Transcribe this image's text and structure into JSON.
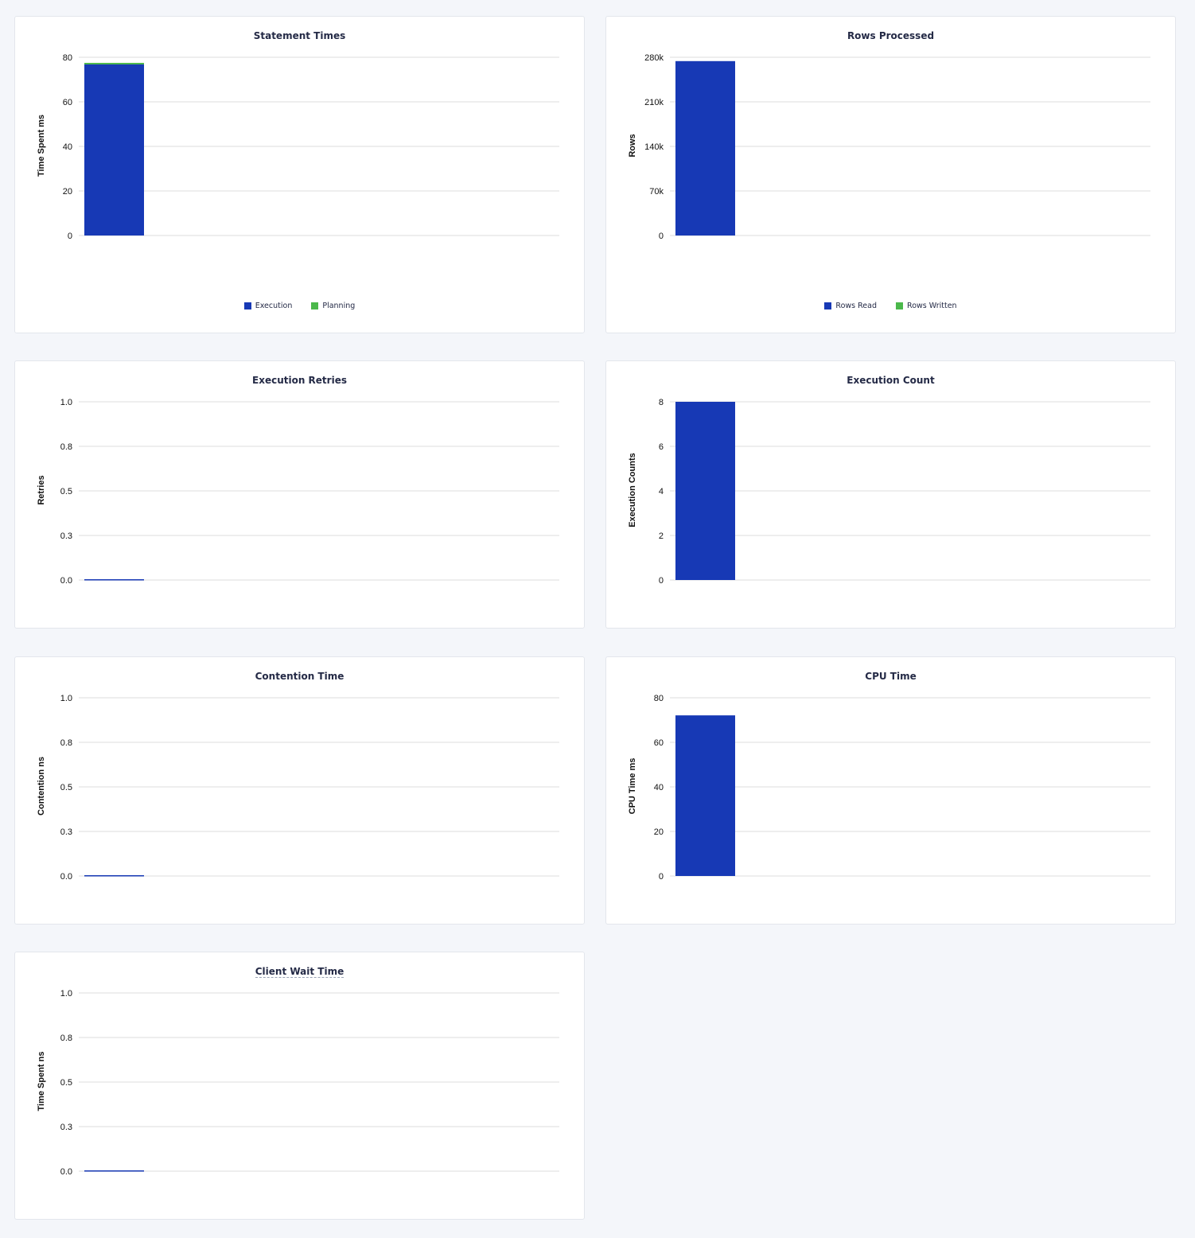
{
  "colors": {
    "primary": "#1739b5",
    "secondary": "#4bb84b",
    "grid": "#e8e8e8"
  },
  "chart_data": [
    {
      "id": "c0",
      "type": "bar",
      "stacked": true,
      "title": "Statement Times",
      "ylabel": "Time Spent ms",
      "ylim": [
        0,
        80
      ],
      "yticks": [
        "0",
        "20",
        "40",
        "60",
        "80"
      ],
      "tickvals": [
        0,
        20,
        40,
        60,
        80
      ],
      "series": [
        {
          "name": "Execution",
          "values": [
            76.8
          ],
          "color": "#1739b5"
        },
        {
          "name": "Planning",
          "values": [
            0.7
          ],
          "color": "#4bb84b"
        }
      ],
      "legend": "bottom"
    },
    {
      "id": "c1",
      "type": "bar",
      "stacked": true,
      "title": "Rows Processed",
      "ylabel": "Rows",
      "ylim": [
        0,
        280000
      ],
      "yticks": [
        "0",
        "70k",
        "140k",
        "210k",
        "280k"
      ],
      "tickvals": [
        0,
        70000,
        140000,
        210000,
        280000
      ],
      "series": [
        {
          "name": "Rows Read",
          "values": [
            274000
          ],
          "color": "#1739b5"
        },
        {
          "name": "Rows Written",
          "values": [
            0
          ],
          "color": "#4bb84b"
        }
      ],
      "legend": "bottom"
    },
    {
      "id": "c2",
      "type": "bar",
      "title": "Execution Retries",
      "ylabel": "Retries",
      "ylim": [
        0,
        1
      ],
      "yticks": [
        "0.0",
        "0.3",
        "0.5",
        "0.8",
        "1.0"
      ],
      "tickvals": [
        0,
        0.25,
        0.5,
        0.75,
        1
      ],
      "series": [
        {
          "values": [
            0
          ],
          "color": "#1739b5"
        }
      ]
    },
    {
      "id": "c3",
      "type": "bar",
      "title": "Execution Count",
      "ylabel": "Execution Counts",
      "ylim": [
        0,
        8
      ],
      "yticks": [
        "0",
        "2",
        "4",
        "6",
        "8"
      ],
      "tickvals": [
        0,
        2,
        4,
        6,
        8
      ],
      "series": [
        {
          "values": [
            8
          ],
          "color": "#1739b5"
        }
      ]
    },
    {
      "id": "c4",
      "type": "bar",
      "title": "Contention Time",
      "ylabel": "Contention ns",
      "ylim": [
        0,
        1
      ],
      "yticks": [
        "0.0",
        "0.3",
        "0.5",
        "0.8",
        "1.0"
      ],
      "tickvals": [
        0,
        0.25,
        0.5,
        0.75,
        1
      ],
      "series": [
        {
          "values": [
            0
          ],
          "color": "#1739b5"
        }
      ]
    },
    {
      "id": "c5",
      "type": "bar",
      "title": "CPU Time",
      "ylabel": "CPU Time ms",
      "ylim": [
        0,
        80
      ],
      "yticks": [
        "0",
        "20",
        "40",
        "60",
        "80"
      ],
      "tickvals": [
        0,
        20,
        40,
        60,
        80
      ],
      "series": [
        {
          "values": [
            72.1
          ],
          "color": "#1739b5"
        }
      ]
    },
    {
      "id": "c6",
      "type": "bar",
      "title": "Client Wait Time",
      "title_has_tooltip": true,
      "ylabel": "Time Spent ns",
      "ylim": [
        0,
        1
      ],
      "yticks": [
        "0.0",
        "0.3",
        "0.5",
        "0.8",
        "1.0"
      ],
      "tickvals": [
        0,
        0.25,
        0.5,
        0.75,
        1
      ],
      "series": [
        {
          "values": [
            0
          ],
          "color": "#1739b5"
        }
      ]
    }
  ]
}
